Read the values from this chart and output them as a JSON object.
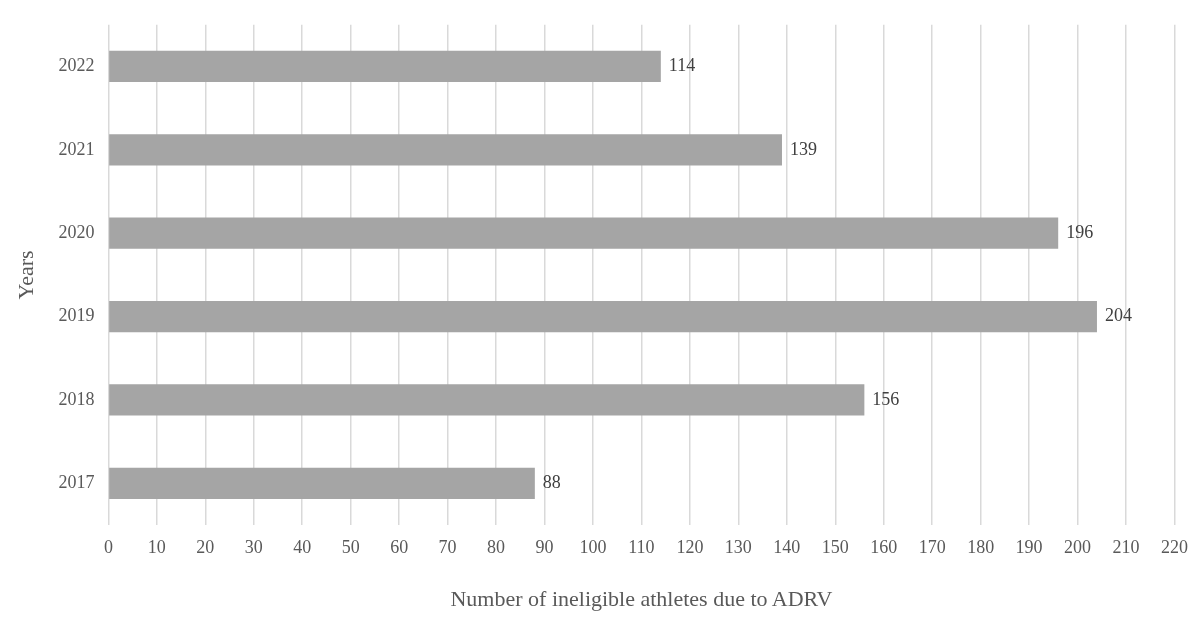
{
  "chart_data": {
    "type": "bar",
    "orientation": "horizontal",
    "xlabel": "Number of ineligible athletes due to ADRV",
    "ylabel": "Years",
    "categories": [
      "2022",
      "2021",
      "2020",
      "2019",
      "2018",
      "2017"
    ],
    "values": [
      114,
      139,
      196,
      204,
      156,
      88
    ],
    "color": "#a5a5a5",
    "xlim": [
      0,
      220
    ],
    "xticks": [
      0,
      10,
      20,
      30,
      40,
      50,
      60,
      70,
      80,
      90,
      100,
      110,
      120,
      130,
      140,
      150,
      160,
      170,
      180,
      190,
      200,
      210,
      220
    ],
    "grid": "x",
    "data_labels": true
  }
}
